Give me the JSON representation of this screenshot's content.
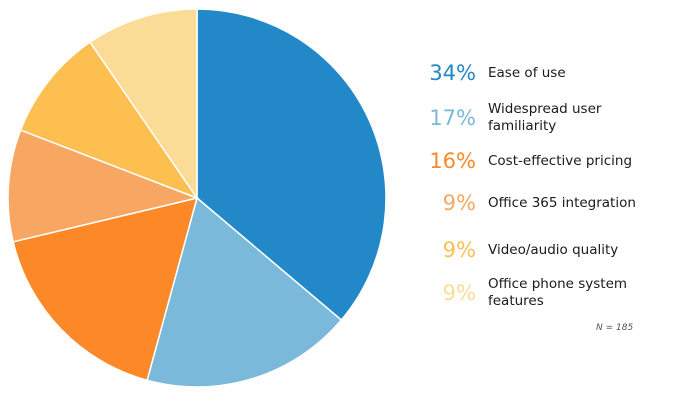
{
  "chart_data": {
    "type": "pie",
    "slices": [
      {
        "label": "Ease of use",
        "value": 34,
        "value_label": "34%",
        "color": "#2288c8"
      },
      {
        "label": "Widespread user familiarity",
        "value": 17,
        "value_label": "17%",
        "color": "#7ab9da"
      },
      {
        "label": "Cost-effective pricing",
        "value": 16,
        "value_label": "16%",
        "color": "#fd8828"
      },
      {
        "label": "Office 365 integration",
        "value": 9,
        "value_label": "9%",
        "color": "#f8a762"
      },
      {
        "label": "Video/audio quality",
        "value": 9,
        "value_label": "9%",
        "color": "#fcbf50"
      },
      {
        "label": "Office phone system features",
        "value": 9,
        "value_label": "9%",
        "color": "#fbdc96"
      }
    ],
    "note": "N = 185",
    "legend_position": "right"
  }
}
